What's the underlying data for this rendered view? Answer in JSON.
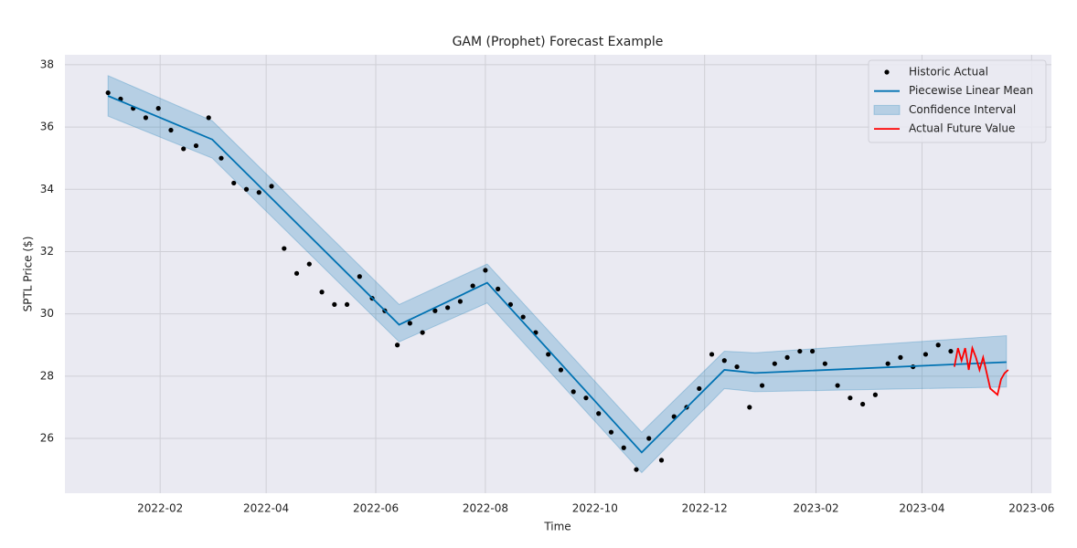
{
  "chart_data": {
    "type": "line",
    "title": "GAM (Prophet) Forecast Example",
    "xlabel": "Time",
    "ylabel": "SPTL Price ($)",
    "xlim": [
      "2021-12-10",
      "2023-06-12"
    ],
    "xticks": [
      {
        "value": "2022-02-01",
        "label": "2022-02"
      },
      {
        "value": "2022-04-01",
        "label": "2022-04"
      },
      {
        "value": "2022-06-01",
        "label": "2022-06"
      },
      {
        "value": "2022-08-01",
        "label": "2022-08"
      },
      {
        "value": "2022-10-01",
        "label": "2022-10"
      },
      {
        "value": "2022-12-01",
        "label": "2022-12"
      },
      {
        "value": "2023-02-01",
        "label": "2023-02"
      },
      {
        "value": "2023-04-01",
        "label": "2023-04"
      },
      {
        "value": "2023-06-01",
        "label": "2023-06"
      }
    ],
    "ylim": [
      24.24,
      38.32
    ],
    "yticks": [
      26,
      28,
      30,
      32,
      34,
      36,
      38
    ],
    "grid": true,
    "legend": "upper right",
    "series": [
      {
        "name": "Historic Actual",
        "type": "scatter",
        "color": "#000000",
        "x": [
          "2022-01-03",
          "2022-01-10",
          "2022-01-17",
          "2022-01-24",
          "2022-01-31",
          "2022-02-07",
          "2022-02-14",
          "2022-02-21",
          "2022-02-28",
          "2022-03-07",
          "2022-03-14",
          "2022-03-21",
          "2022-03-28",
          "2022-04-04",
          "2022-04-11",
          "2022-04-18",
          "2022-04-25",
          "2022-05-02",
          "2022-05-09",
          "2022-05-16",
          "2022-05-23",
          "2022-05-30",
          "2022-06-06",
          "2022-06-13",
          "2022-06-20",
          "2022-06-27",
          "2022-07-04",
          "2022-07-11",
          "2022-07-18",
          "2022-07-25",
          "2022-08-01",
          "2022-08-08",
          "2022-08-15",
          "2022-08-22",
          "2022-08-29",
          "2022-09-05",
          "2022-09-12",
          "2022-09-19",
          "2022-09-26",
          "2022-10-03",
          "2022-10-10",
          "2022-10-17",
          "2022-10-24",
          "2022-10-31",
          "2022-11-07",
          "2022-11-14",
          "2022-11-21",
          "2022-11-28",
          "2022-12-05",
          "2022-12-12",
          "2022-12-19",
          "2022-12-26",
          "2023-01-02",
          "2023-01-09",
          "2023-01-16",
          "2023-01-23",
          "2023-01-30",
          "2023-02-06",
          "2023-02-13",
          "2023-02-20",
          "2023-02-27",
          "2023-03-06",
          "2023-03-13",
          "2023-03-20",
          "2023-03-27",
          "2023-04-03",
          "2023-04-10",
          "2023-04-17"
        ],
        "values": [
          37.1,
          36.9,
          36.6,
          36.3,
          36.6,
          35.9,
          35.3,
          35.4,
          36.3,
          35.0,
          34.2,
          34.0,
          33.9,
          34.1,
          32.1,
          31.3,
          31.6,
          30.7,
          30.3,
          30.3,
          31.2,
          30.5,
          30.1,
          29.0,
          29.7,
          29.4,
          30.1,
          30.2,
          30.4,
          30.9,
          31.4,
          30.8,
          30.3,
          29.9,
          29.4,
          28.7,
          28.2,
          27.5,
          27.3,
          26.8,
          26.2,
          25.7,
          25.0,
          26.0,
          25.3,
          26.7,
          27.0,
          27.6,
          28.7,
          28.5,
          28.3,
          27.0,
          27.7,
          28.4,
          28.6,
          28.8,
          28.8,
          28.4,
          27.7,
          27.3,
          27.1,
          27.4,
          28.4,
          28.6,
          28.3,
          28.7,
          29.0,
          28.8
        ]
      },
      {
        "name": "Piecewise Linear Mean",
        "type": "line",
        "color": "#0072b2",
        "x": [
          "2022-01-03",
          "2022-03-02",
          "2022-06-14",
          "2022-08-02",
          "2022-10-27",
          "2022-12-12",
          "2022-12-29",
          "2023-05-18"
        ],
        "values": [
          37.0,
          35.6,
          29.65,
          31.0,
          25.55,
          28.2,
          28.1,
          28.45
        ]
      },
      {
        "name": "Confidence Interval",
        "type": "area",
        "color": "#0072b2",
        "x": [
          "2022-01-03",
          "2022-03-02",
          "2022-06-14",
          "2022-08-02",
          "2022-10-27",
          "2022-12-12",
          "2022-12-29",
          "2023-05-18"
        ],
        "lower": [
          36.35,
          35.0,
          29.1,
          30.35,
          24.9,
          27.6,
          27.5,
          27.65
        ],
        "upper": [
          37.65,
          36.2,
          30.3,
          31.6,
          26.2,
          28.8,
          28.75,
          29.3
        ]
      },
      {
        "name": "Actual Future Value",
        "type": "line",
        "color": "#ff0000",
        "x": [
          "2023-04-19",
          "2023-04-21",
          "2023-04-23",
          "2023-04-25",
          "2023-04-27",
          "2023-04-29",
          "2023-05-01",
          "2023-05-03",
          "2023-05-05",
          "2023-05-07",
          "2023-05-09",
          "2023-05-11",
          "2023-05-13",
          "2023-05-15",
          "2023-05-17",
          "2023-05-19"
        ],
        "values": [
          28.3,
          28.9,
          28.5,
          28.9,
          28.2,
          28.9,
          28.6,
          28.2,
          28.6,
          28.1,
          27.6,
          27.5,
          27.4,
          27.9,
          28.1,
          28.2
        ]
      }
    ]
  }
}
